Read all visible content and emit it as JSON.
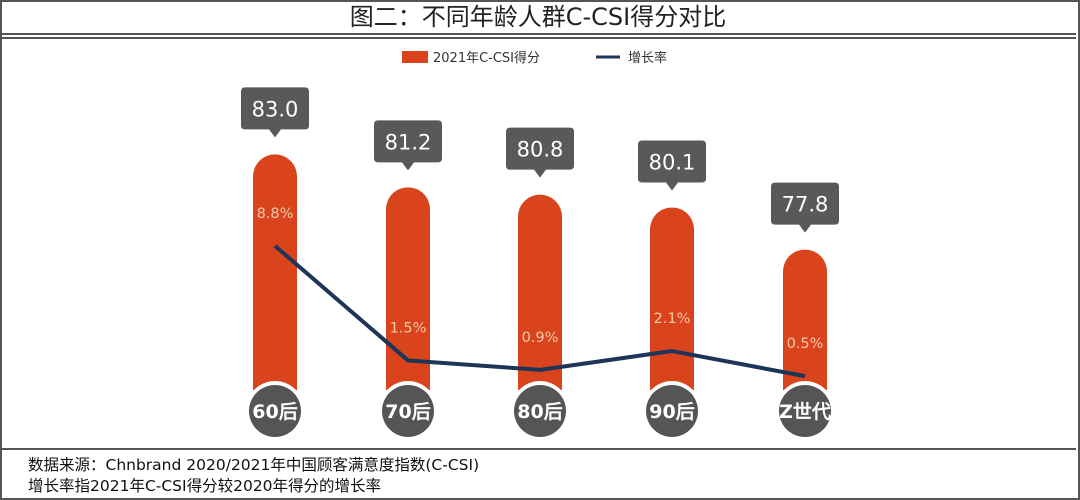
{
  "title": "图二：不同年龄人群C-CSI得分对比",
  "chart_data": {
    "type": "bar+line",
    "title": "图二：不同年龄人群C-CSI得分对比",
    "categories": [
      "60后",
      "70后",
      "80后",
      "90后",
      "Z世代"
    ],
    "series": [
      {
        "name": "2021年C-CSI得分",
        "type": "bar",
        "values": [
          83.0,
          81.2,
          80.8,
          80.1,
          77.8
        ],
        "labels": [
          "83.0",
          "81.2",
          "80.8",
          "80.1",
          "77.8"
        ],
        "color": "#d9441c"
      },
      {
        "name": "增长率",
        "type": "line",
        "values": [
          8.8,
          1.5,
          0.9,
          2.1,
          0.5
        ],
        "unit": "%",
        "labels": [
          "8.8%",
          "1.5%",
          "0.9%",
          "2.1%",
          "0.5%"
        ],
        "color": "#1d3557"
      }
    ],
    "legend": "top-center",
    "grid": false
  },
  "colors": {
    "callout": "#595959",
    "category_circle": "#555555"
  },
  "footer": {
    "source": "数据来源：Chnbrand 2020/2021年中国顾客满意度指数(C-CSI)",
    "note": "增长率指2021年C-CSI得分较2020年得分的增长率"
  }
}
